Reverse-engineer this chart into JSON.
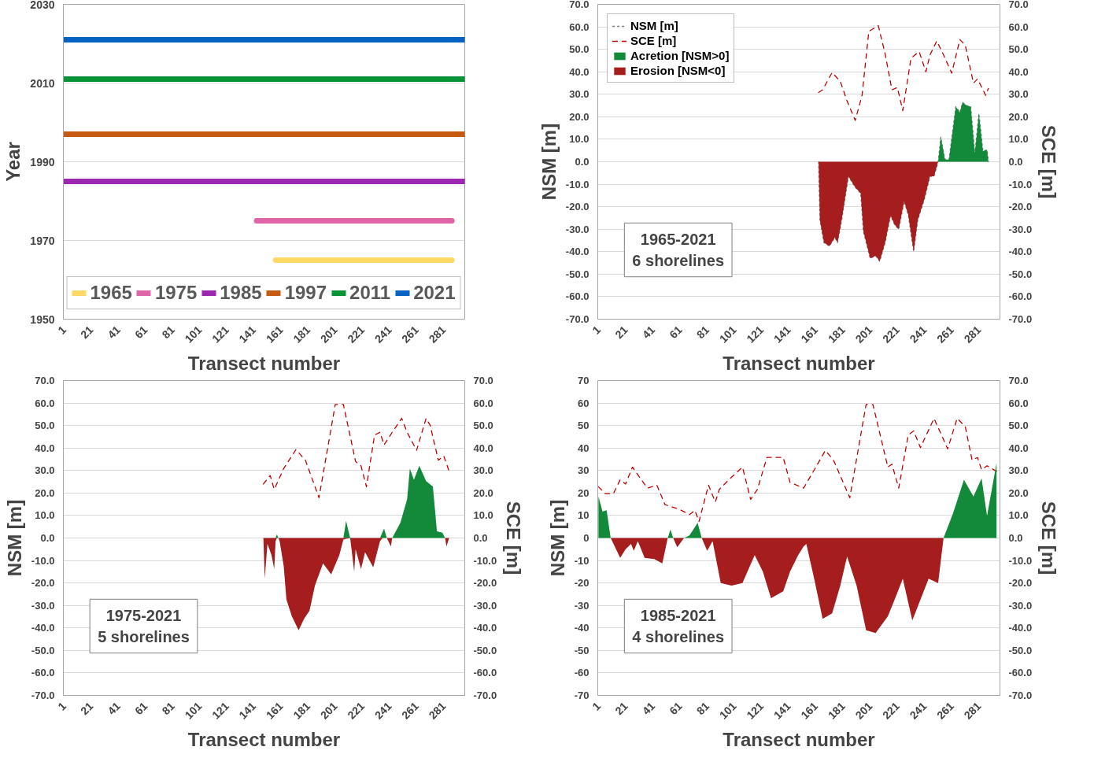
{
  "chart_data": [
    {
      "type": "line",
      "xlabel": "Transect number",
      "ylabel": "Year",
      "xlim": [
        0.5,
        296.5
      ],
      "ylim": [
        1950,
        2030
      ],
      "xticks": [
        1,
        21,
        41,
        61,
        81,
        101,
        121,
        141,
        161,
        181,
        201,
        221,
        241,
        261,
        281
      ],
      "yticks": [
        1950,
        1970,
        1990,
        2010,
        2030
      ],
      "grid": "y",
      "legend": "bottom",
      "series": [
        {
          "name": "1965",
          "color": "#ffd966",
          "x": [
            157,
            287
          ],
          "values": [
            1965,
            1965
          ]
        },
        {
          "name": "1975",
          "color": "#e064a8",
          "x": [
            143,
            287
          ],
          "values": [
            1975,
            1975
          ]
        },
        {
          "name": "1985",
          "color": "#9c27b0",
          "x": [
            1,
            296
          ],
          "values": [
            1985,
            1985
          ]
        },
        {
          "name": "1997",
          "color": "#c55a11",
          "x": [
            1,
            296
          ],
          "values": [
            1997,
            1997
          ]
        },
        {
          "name": "2011",
          "color": "#079436",
          "x": [
            1,
            296
          ],
          "values": [
            2011,
            2011
          ]
        },
        {
          "name": "2021",
          "color": "#0563c1",
          "x": [
            1,
            296
          ],
          "values": [
            2021,
            2021
          ]
        }
      ]
    },
    {
      "type": "area",
      "xlabel": "Transect number",
      "ylabel": "NSM [m]",
      "y2label": "SCE [m]",
      "xlim": [
        0.5,
        296.5
      ],
      "ylim": [
        -70,
        70
      ],
      "y2lim": [
        -70,
        70
      ],
      "xticks": [
        1,
        21,
        41,
        61,
        81,
        101,
        121,
        141,
        161,
        181,
        201,
        221,
        241,
        261,
        281
      ],
      "yticks": [
        {
          "value": -70,
          "label": "-70.0"
        },
        {
          "value": -60,
          "label": "-60.0"
        },
        {
          "value": -50,
          "label": "-50.0"
        },
        {
          "value": -40,
          "label": "-40.0"
        },
        {
          "value": -30,
          "label": "-30.0"
        },
        {
          "value": -20,
          "label": "-20.0"
        },
        {
          "value": -10,
          "label": "-10.0"
        },
        {
          "value": 0,
          "label": "0.0"
        },
        {
          "value": 10,
          "label": "10.0"
        },
        {
          "value": 20,
          "label": "20.0"
        },
        {
          "value": 30,
          "label": "30.0"
        },
        {
          "value": 40,
          "label": "40.0"
        },
        {
          "value": 50,
          "label": "50.0"
        },
        {
          "value": 60,
          "label": "60.0"
        },
        {
          "value": 70,
          "label": "70.0"
        }
      ],
      "y2ticks": [
        {
          "value": -70,
          "label": "-70.0"
        },
        {
          "value": -60,
          "label": "-60.0"
        },
        {
          "value": -50,
          "label": "-50.0"
        },
        {
          "value": -40,
          "label": "-40.0"
        },
        {
          "value": -30,
          "label": "-30.0"
        },
        {
          "value": -20,
          "label": "-20.0"
        },
        {
          "value": -10,
          "label": "-10.0"
        },
        {
          "value": 0,
          "label": "0.0"
        },
        {
          "value": 10,
          "label": "10.0"
        },
        {
          "value": 20,
          "label": "20.0"
        },
        {
          "value": 30,
          "label": "30.0"
        },
        {
          "value": 40,
          "label": "40.0"
        },
        {
          "value": 50,
          "label": "50.0"
        },
        {
          "value": 60,
          "label": "60.0"
        },
        {
          "value": 70,
          "label": "70.0"
        }
      ],
      "grid": "y",
      "legend": "top left",
      "annotations": [
        "1965-2021\n6 shorelines"
      ],
      "series": [
        {
          "name": "NSM [m]",
          "type": "line",
          "line_style": "dotted",
          "color": "#7f7f7f",
          "x": [
            163,
            164,
            167,
            171,
            175,
            177,
            180,
            185,
            190,
            194,
            196,
            201,
            205,
            208,
            212,
            216,
            219,
            222,
            226,
            229,
            233,
            236,
            241,
            245,
            248,
            251,
            253,
            256,
            259,
            264,
            267,
            269,
            272,
            275,
            278,
            281,
            284,
            287,
            288
          ],
          "values": [
            0,
            -26,
            -36,
            -37.5,
            -33.7,
            -36,
            -26,
            -6.5,
            -11.4,
            -14,
            -31,
            -43,
            -41.8,
            -44.3,
            -36,
            -24,
            -28,
            -30,
            -17.6,
            -23.6,
            -40,
            -26,
            -16.4,
            -6.5,
            -6.5,
            0,
            11,
            1,
            1,
            24.5,
            22,
            26.4,
            25,
            24.5,
            3.5,
            21.5,
            4.7,
            5.3,
            0
          ]
        },
        {
          "name": "SCE [m]",
          "type": "line",
          "line_style": "dashed",
          "color": "#c00000",
          "x": [
            163,
            166,
            173,
            179,
            184,
            190,
            195,
            200,
            207,
            212,
            217,
            221,
            225,
            231,
            237,
            242,
            245,
            250,
            255,
            261,
            267,
            271,
            277,
            280,
            286,
            288
          ],
          "values": [
            30.8,
            32,
            39.7,
            35.7,
            27,
            18.4,
            29.5,
            58,
            60.5,
            48,
            32,
            33,
            22.7,
            46,
            49,
            40,
            47.5,
            53.7,
            47.5,
            39.4,
            54.3,
            51.8,
            35,
            36.8,
            29.5,
            32.6
          ]
        },
        {
          "name": "Acretion [NSM>0]",
          "color": "#138a3a",
          "x": [
            251,
            253,
            256,
            259,
            264,
            267,
            269,
            272,
            275,
            278,
            281,
            284,
            287,
            288
          ],
          "values": [
            0,
            11,
            1,
            1,
            24.5,
            22,
            26.4,
            25,
            24.5,
            3.5,
            21.5,
            4.7,
            5.3,
            0
          ]
        },
        {
          "name": "Erosion [NSM<0]",
          "color": "#a51d1d",
          "x": [
            163,
            164,
            167,
            171,
            175,
            177,
            180,
            185,
            190,
            194,
            196,
            201,
            205,
            208,
            212,
            216,
            219,
            222,
            226,
            229,
            233,
            236,
            241,
            245,
            248,
            251
          ],
          "values": [
            0,
            -26,
            -36,
            -37.5,
            -33.7,
            -36,
            -26,
            -6.5,
            -11.4,
            -14,
            -31,
            -43,
            -41.8,
            -44.3,
            -36,
            -24,
            -28,
            -30,
            -17.6,
            -23.6,
            -40,
            -26,
            -16.4,
            -6.5,
            -6.5,
            0
          ]
        }
      ]
    },
    {
      "type": "area",
      "xlabel": "Transect number",
      "ylabel": "NSM [m]",
      "y2label": "SCE [m]",
      "xlim": [
        0.5,
        296.5
      ],
      "ylim": [
        -70,
        70
      ],
      "y2lim": [
        -70,
        70
      ],
      "xticks": [
        1,
        21,
        41,
        61,
        81,
        101,
        121,
        141,
        161,
        181,
        201,
        221,
        241,
        261,
        281
      ],
      "yticks": [
        {
          "value": -70,
          "label": "-70.0"
        },
        {
          "value": -60,
          "label": "-60.0"
        },
        {
          "value": -50,
          "label": "-50.0"
        },
        {
          "value": -40,
          "label": "-40.0"
        },
        {
          "value": -30,
          "label": "-30.0"
        },
        {
          "value": -20,
          "label": "-20.0"
        },
        {
          "value": -10,
          "label": "-10.0"
        },
        {
          "value": 0,
          "label": "0.0"
        },
        {
          "value": 10,
          "label": "10.0"
        },
        {
          "value": 20,
          "label": "20.0"
        },
        {
          "value": 30,
          "label": "30.0"
        },
        {
          "value": 40,
          "label": "40.0"
        },
        {
          "value": 50,
          "label": "50.0"
        },
        {
          "value": 60,
          "label": "60.0"
        },
        {
          "value": 70,
          "label": "70.0"
        }
      ],
      "y2ticks": [
        {
          "value": -70,
          "label": "-70.0"
        },
        {
          "value": -60,
          "label": "-60.0"
        },
        {
          "value": -50,
          "label": "-50.0"
        },
        {
          "value": -40,
          "label": "-40.0"
        },
        {
          "value": -30,
          "label": "-30.0"
        },
        {
          "value": -20,
          "label": "-20.0"
        },
        {
          "value": -10,
          "label": "-10.0"
        },
        {
          "value": 0,
          "label": "0.0"
        },
        {
          "value": 10,
          "label": "10.0"
        },
        {
          "value": 20,
          "label": "20.0"
        },
        {
          "value": 30,
          "label": "30.0"
        },
        {
          "value": 40,
          "label": "40.0"
        },
        {
          "value": 50,
          "label": "50.0"
        },
        {
          "value": 60,
          "label": "60.0"
        },
        {
          "value": 70,
          "label": "70.0"
        }
      ],
      "grid": "y",
      "annotations": [
        "1975-2021\n5 shorelines"
      ],
      "series": [
        {
          "type": "line",
          "line_style": "dashed",
          "color": "#c00000",
          "x": [
            148,
            153,
            156,
            163,
            172,
            179,
            189,
            196,
            201,
            207,
            216,
            220,
            224,
            230,
            234,
            237,
            243,
            250,
            254,
            261,
            268,
            271,
            277,
            281,
            285
          ],
          "values": [
            24,
            27.8,
            21.6,
            30.9,
            39.3,
            34.6,
            17.9,
            42,
            59.4,
            59.4,
            34,
            32.1,
            22.8,
            45.8,
            47,
            41.4,
            47,
            53.2,
            47,
            39,
            53.2,
            50.1,
            34.6,
            36.5,
            29.6
          ]
        },
        {
          "color": "#138a3a",
          "x": [
            157,
            158,
            159,
            207,
            209,
            212,
            234,
            237,
            239,
            243,
            249,
            254,
            256,
            259,
            263,
            268,
            273,
            276,
            280,
            282
          ],
          "values": [
            0,
            1.7,
            0,
            0,
            7.6,
            0,
            0,
            4.2,
            0,
            0,
            6.7,
            17.2,
            30.9,
            25.9,
            32.1,
            25.3,
            22.8,
            3,
            2.4,
            0
          ]
        },
        {
          "color": "#a51d1d",
          "x": [
            148,
            149,
            151,
            154,
            156,
            157,
            158,
            159,
            160,
            163,
            165,
            169,
            174,
            178,
            182,
            186,
            192,
            198,
            204,
            207,
            212,
            215,
            216,
            220,
            223,
            229,
            234,
            236,
            239,
            242,
            243,
            282,
            283,
            285
          ],
          "values": [
            0,
            -18,
            -2.6,
            -7.6,
            -13.8,
            -1.4,
            0,
            0,
            -1.4,
            -12.5,
            -27.4,
            -34.8,
            -41,
            -36,
            -32.4,
            -21.2,
            -11.3,
            -16.2,
            -7.6,
            -0.7,
            0,
            -15,
            -5,
            -13.8,
            -6.3,
            -13,
            -1.4,
            0,
            0,
            -3.8,
            0,
            0,
            -3.8,
            0
          ]
        }
      ]
    },
    {
      "type": "area",
      "xlabel": "Transect number",
      "ylabel": "NSM [m]",
      "y2label": "SCE [m]",
      "xlim": [
        0.5,
        296.5
      ],
      "ylim": [
        -70,
        70
      ],
      "y2lim": [
        -70,
        70
      ],
      "xticks": [
        1,
        21,
        41,
        61,
        81,
        101,
        121,
        141,
        161,
        181,
        201,
        221,
        241,
        261,
        281
      ],
      "yticks": [
        -70,
        -60,
        -50,
        -40,
        -30,
        -20,
        -10,
        0,
        10,
        20,
        30,
        40,
        50,
        60,
        70
      ],
      "y2ticks": [
        {
          "value": -70,
          "label": "-70.0"
        },
        {
          "value": -60,
          "label": "-60.0"
        },
        {
          "value": -50,
          "label": "-50.0"
        },
        {
          "value": -40,
          "label": "-40.0"
        },
        {
          "value": -30,
          "label": "-30.0"
        },
        {
          "value": -20,
          "label": "-20.0"
        },
        {
          "value": -10,
          "label": "-10.0"
        },
        {
          "value": 0,
          "label": "0.0"
        },
        {
          "value": 10,
          "label": "10.0"
        },
        {
          "value": 20,
          "label": "20.0"
        },
        {
          "value": 30,
          "label": "30.0"
        },
        {
          "value": 40,
          "label": "40.0"
        },
        {
          "value": 50,
          "label": "50.0"
        },
        {
          "value": 60,
          "label": "60.0"
        },
        {
          "value": 70,
          "label": "70.0"
        }
      ],
      "grid": "y",
      "annotations": [
        "1985-2021\n4 shorelines"
      ],
      "series": [
        {
          "type": "line",
          "line_style": "dashed",
          "color": "#c00000",
          "x": [
            1,
            6,
            12,
            17,
            21,
            26,
            37,
            44,
            50,
            60,
            68,
            72,
            75,
            82,
            87,
            90,
            97,
            107,
            113,
            118,
            125,
            137,
            142,
            152,
            161,
            168,
            174,
            186,
            198,
            203,
            214,
            217,
            222,
            229,
            233,
            238,
            248,
            258,
            265,
            271,
            276,
            280,
            283,
            287,
            294
          ],
          "values": [
            22.8,
            19.7,
            19.7,
            25.9,
            24,
            31.5,
            22.2,
            23.5,
            14.8,
            12.9,
            10.4,
            12.3,
            7.3,
            23.5,
            16,
            21.6,
            25.9,
            31.5,
            17.2,
            21.6,
            35.8,
            35.8,
            24.7,
            22.2,
            31.5,
            38.9,
            34.6,
            17.9,
            59.4,
            59.4,
            31.5,
            32.8,
            22.2,
            45.8,
            47.6,
            40.2,
            53.2,
            39.6,
            53.2,
            49.5,
            34.6,
            35.8,
            30.3,
            32.1,
            29.6
          ]
        },
        {
          "color": "#138a3a",
          "x": [
            1,
            4,
            7,
            10,
            52,
            54,
            56,
            64,
            68,
            74,
            77,
            255,
            262,
            270,
            277,
            283,
            287,
            294
          ],
          "values": [
            18.5,
            11.7,
            12.3,
            0,
            0,
            3.8,
            0,
            0,
            1.1,
            6.7,
            0,
            0,
            11,
            25.9,
            18.5,
            26.5,
            9.8,
            33.3
          ]
        },
        {
          "color": "#a51d1d",
          "x": [
            10,
            17,
            21,
            25,
            27,
            30,
            35,
            42,
            48,
            52,
            56,
            59,
            64,
            77,
            81,
            85,
            91,
            99,
            107,
            116,
            122,
            128,
            137,
            142,
            148,
            152,
            154,
            160,
            166,
            173,
            179,
            184,
            191,
            198,
            205,
            214,
            219,
            225,
            232,
            238,
            244,
            251,
            255
          ],
          "values": [
            0,
            -8.8,
            -5,
            -2.6,
            -5.7,
            -1.4,
            -8.8,
            -9.4,
            -11.3,
            0,
            0,
            -4.1,
            0,
            0,
            -5.7,
            -1.4,
            -20,
            -21.2,
            -20,
            -7.6,
            -15,
            -26.8,
            -23.7,
            -15,
            -7.6,
            -3.8,
            -2.6,
            -18.7,
            -36,
            -33.5,
            -21.2,
            -8.2,
            -21.2,
            -41,
            -42.3,
            -34.8,
            -27.4,
            -18.1,
            -36.7,
            -27.4,
            -18.1,
            -20,
            0
          ]
        }
      ]
    }
  ]
}
